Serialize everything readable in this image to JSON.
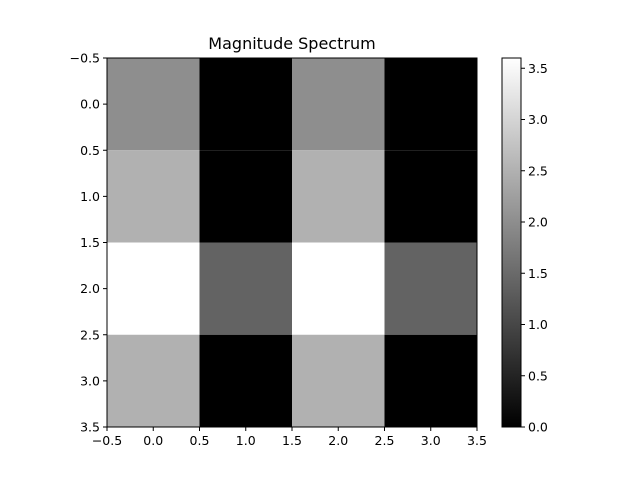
{
  "chart_data": {
    "type": "heatmap",
    "title": "Magnitude Spectrum",
    "xlabel": "",
    "ylabel": "",
    "xlim": [
      -0.5,
      3.5
    ],
    "ylim": [
      3.5,
      -0.5
    ],
    "x_ticks": [
      "−0.5",
      "0.0",
      "0.5",
      "1.0",
      "1.5",
      "2.0",
      "2.5",
      "3.0",
      "3.5"
    ],
    "y_ticks": [
      "−0.5",
      "0.0",
      "0.5",
      "1.0",
      "1.5",
      "2.0",
      "2.5",
      "3.0",
      "3.5"
    ],
    "colormap": "gray",
    "values": [
      [
        2.0,
        0.0,
        2.0,
        0.0
      ],
      [
        2.5,
        0.0,
        2.5,
        0.0
      ],
      [
        3.6,
        1.4,
        3.6,
        1.4
      ],
      [
        2.5,
        0.0,
        2.5,
        0.0
      ]
    ],
    "colorbar": {
      "range": [
        0.0,
        3.6
      ],
      "ticks": [
        "0.0",
        "0.5",
        "1.0",
        "1.5",
        "2.0",
        "2.5",
        "3.0",
        "3.5"
      ]
    },
    "grid": false
  }
}
